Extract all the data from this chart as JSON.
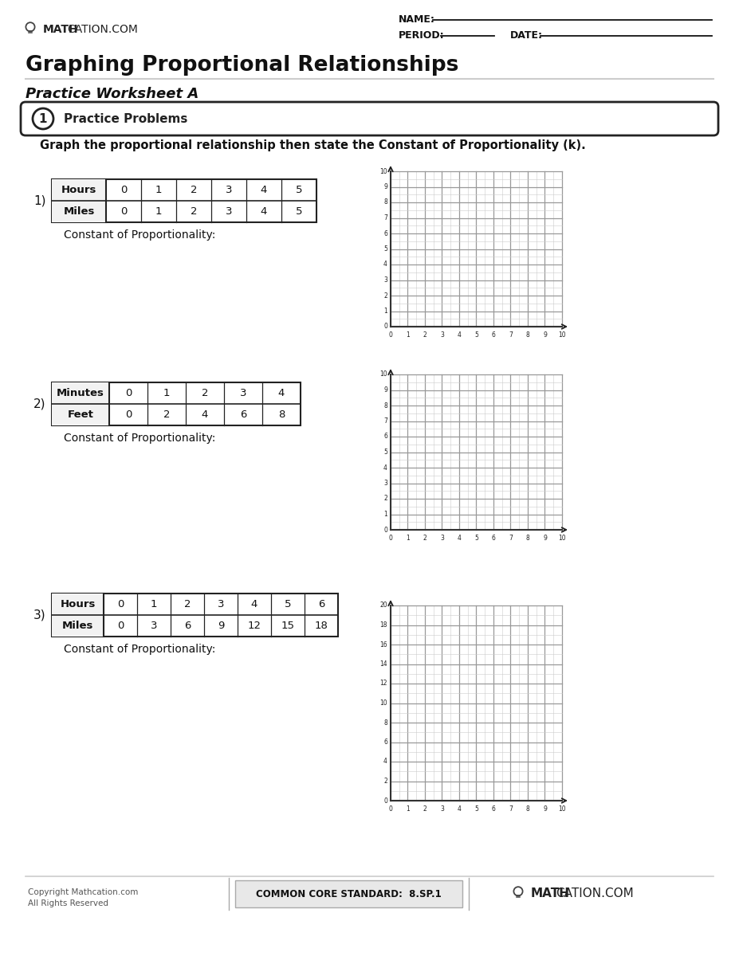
{
  "title": "Graphing Proportional Relationships",
  "subtitle": "Practice Worksheet A",
  "section_label": "1",
  "section_title": "Practice Problems",
  "instruction": "Graph the proportional relationship then state the Constant of Proportionality (k).",
  "name_label": "NAME:",
  "period_label": "PERIOD:",
  "date_label": "DATE:",
  "copyright": "Copyright Mathcation.com\nAll Rights Reserved",
  "standard": "COMMON CORE STANDARD:  8.SP.1",
  "problems": [
    {
      "number": "1)",
      "row1_label": "Hours",
      "row1_values": [
        "0",
        "1",
        "2",
        "3",
        "4",
        "5"
      ],
      "row2_label": "Miles",
      "row2_values": [
        "0",
        "1",
        "2",
        "3",
        "4",
        "5"
      ],
      "constant_label": "Constant of Proportionality:",
      "graph_yticks": [
        0,
        1,
        2,
        3,
        4,
        5,
        6,
        7,
        8,
        9,
        10
      ],
      "graph_xticks": [
        0,
        1,
        2,
        3,
        4,
        5,
        6,
        7,
        8,
        9,
        10
      ],
      "graph_sub": 2
    },
    {
      "number": "2)",
      "row1_label": "Minutes",
      "row1_values": [
        "0",
        "1",
        "2",
        "3",
        "4"
      ],
      "row2_label": "Feet",
      "row2_values": [
        "0",
        "2",
        "4",
        "6",
        "8"
      ],
      "constant_label": "Constant of Proportionality:",
      "graph_yticks": [
        0,
        1,
        2,
        3,
        4,
        5,
        6,
        7,
        8,
        9,
        10
      ],
      "graph_xticks": [
        0,
        1,
        2,
        3,
        4,
        5,
        6,
        7,
        8,
        9,
        10
      ],
      "graph_sub": 2
    },
    {
      "number": "3)",
      "row1_label": "Hours",
      "row1_values": [
        "0",
        "1",
        "2",
        "3",
        "4",
        "5",
        "6"
      ],
      "row2_label": "Miles",
      "row2_values": [
        "0",
        "3",
        "6",
        "9",
        "12",
        "15",
        "18"
      ],
      "constant_label": "Constant of Proportionality:",
      "graph_yticks": [
        0,
        2,
        4,
        6,
        8,
        10,
        12,
        14,
        16,
        18,
        20
      ],
      "graph_xticks": [
        0,
        1,
        2,
        3,
        4,
        5,
        6,
        7,
        8,
        9,
        10
      ],
      "graph_sub": 2
    }
  ],
  "bg_color": "#ffffff",
  "grid_color": "#bbbbbb",
  "grid_sub_color": "#dddddd"
}
